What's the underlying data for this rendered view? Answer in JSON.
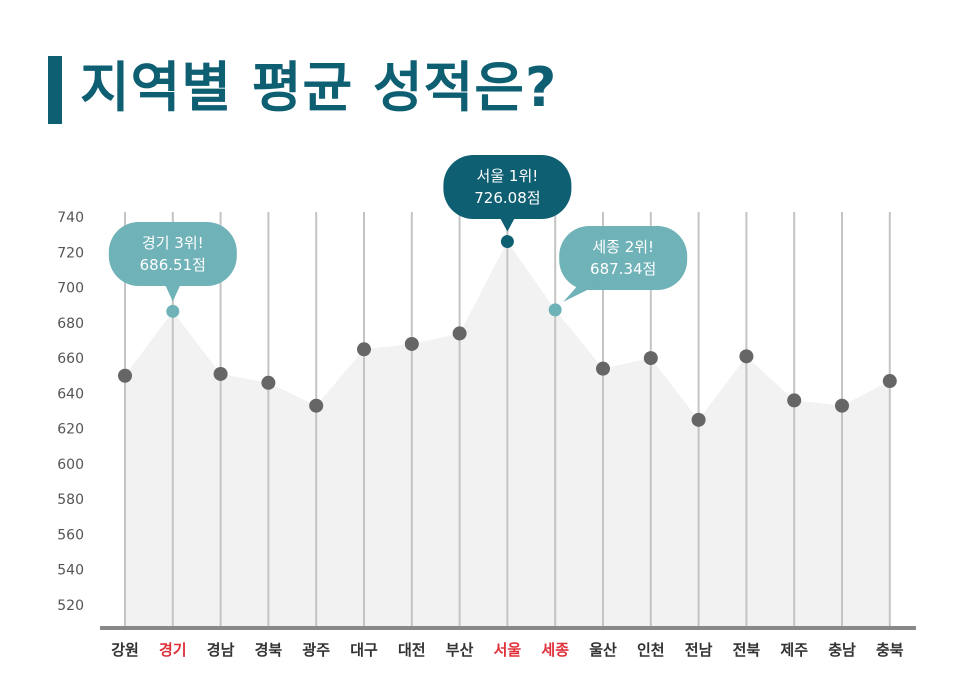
{
  "title": "지역별 평균 성적은?",
  "chart_data": {
    "type": "line",
    "categories": [
      "강원",
      "경기",
      "경남",
      "경북",
      "광주",
      "대구",
      "대전",
      "부산",
      "서울",
      "세종",
      "울산",
      "인천",
      "전남",
      "전북",
      "제주",
      "충남",
      "충북"
    ],
    "values": [
      650,
      686.51,
      651,
      646,
      633,
      665,
      668,
      674,
      726.08,
      687.34,
      654,
      660,
      625,
      661,
      636,
      633,
      647
    ],
    "highlighted_categories": [
      "경기",
      "서울",
      "세종"
    ],
    "ylim": [
      510,
      740
    ],
    "yticks": [
      740,
      720,
      700,
      680,
      660,
      640,
      620,
      600,
      580,
      560,
      540,
      520
    ],
    "callouts": [
      {
        "category": "경기",
        "line1": "경기 3위!",
        "line2": "686.51점",
        "color": "#6fb2b8"
      },
      {
        "category": "서울",
        "line1": "서울 1위!",
        "line2": "726.08점",
        "color": "#0f5f73"
      },
      {
        "category": "세종",
        "line1": "세종 2위!",
        "line2": "687.34점",
        "color": "#6fb2b8"
      }
    ],
    "colors": {
      "point": "#666666",
      "highlight_text": "#e0303a",
      "normal_text": "#333333",
      "area": "#f2f2f2",
      "gridline": "#c4c4c4",
      "axis": "#888888"
    }
  }
}
